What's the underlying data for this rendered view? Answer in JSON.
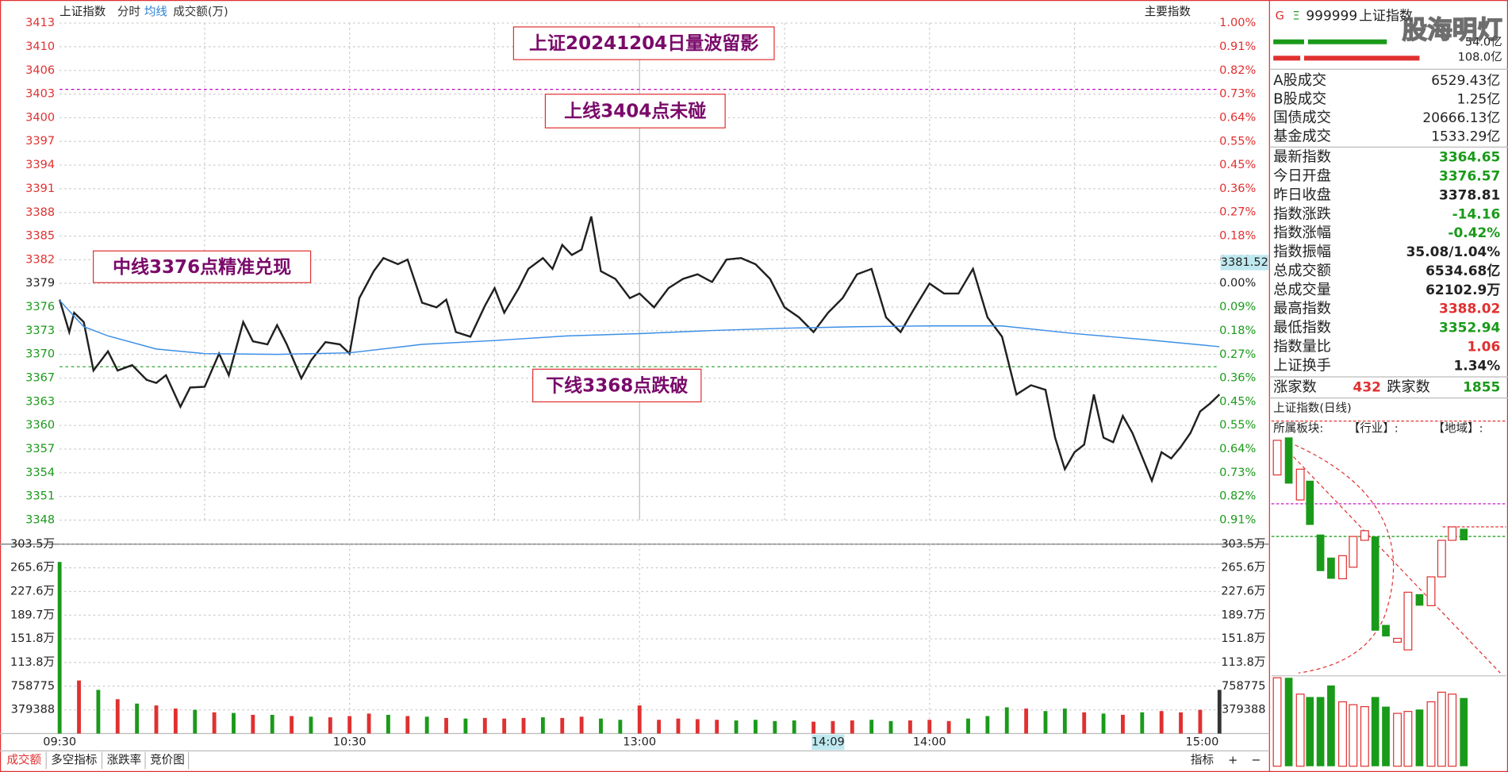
{
  "header": {
    "index_name": "上证指数",
    "tabs": [
      "分时",
      "均线",
      "成交额(万)"
    ],
    "main_index": "主要指数"
  },
  "watermark": "股海明灯",
  "chart_data": [
    {
      "type": "line",
      "title": "上证20241204日量波留影",
      "annotations": [
        "上线3404点未碰",
        "中线3376点精准兑现",
        "下线3368点跌破"
      ],
      "base": 3378.81,
      "xlim": [
        0,
        240
      ],
      "ylim": [
        3348.09,
        3412.6
      ],
      "yticks": [
        {
          "value": 3412.6,
          "label": "3413"
        },
        {
          "value": 3409.53,
          "label": "3410"
        },
        {
          "value": 3406.45,
          "label": "3406"
        },
        {
          "value": 3403.38,
          "label": "3403"
        },
        {
          "value": 3400.31,
          "label": "3400"
        },
        {
          "value": 3397.24,
          "label": "3397"
        },
        {
          "value": 3394.17,
          "label": "3394"
        },
        {
          "value": 3391.1,
          "label": "3391"
        },
        {
          "value": 3388.02,
          "label": "3388"
        },
        {
          "value": 3384.95,
          "label": "3385"
        },
        {
          "value": 3381.88,
          "label": "3382"
        },
        {
          "value": 3378.81,
          "label": "3379"
        },
        {
          "value": 3375.74,
          "label": "3376"
        },
        {
          "value": 3372.67,
          "label": "3373"
        },
        {
          "value": 3369.6,
          "label": "3370"
        },
        {
          "value": 3366.52,
          "label": "3367"
        },
        {
          "value": 3363.45,
          "label": "3363"
        },
        {
          "value": 3360.38,
          "label": "3360"
        },
        {
          "value": 3357.31,
          "label": "3357"
        },
        {
          "value": 3354.24,
          "label": "3354"
        },
        {
          "value": 3351.17,
          "label": "3351"
        },
        {
          "value": 3348.09,
          "label": "3348"
        }
      ],
      "y2lim": [
        -0.909,
        1.0
      ],
      "y2ticks": [
        {
          "value": 1.0,
          "label": "1.00%"
        },
        {
          "value": 0.909,
          "label": "0.91%"
        },
        {
          "value": 0.818,
          "label": "0.82%"
        },
        {
          "value": 0.727,
          "label": "0.73%"
        },
        {
          "value": 0.636,
          "label": "0.64%"
        },
        {
          "value": 0.545,
          "label": "0.55%"
        },
        {
          "value": 0.455,
          "label": "0.45%"
        },
        {
          "value": 0.364,
          "label": "0.36%"
        },
        {
          "value": 0.273,
          "label": "0.27%"
        },
        {
          "value": 0.182,
          "label": "0.18%"
        },
        {
          "value": 0.091,
          "label": "0.09%"
        },
        {
          "value": 0,
          "label": "0.00%"
        },
        {
          "value": -0.091,
          "label": "0.09%"
        },
        {
          "value": -0.182,
          "label": "0.18%"
        },
        {
          "value": -0.273,
          "label": "0.27%"
        },
        {
          "value": -0.364,
          "label": "0.36%"
        },
        {
          "value": -0.455,
          "label": "0.45%"
        },
        {
          "value": -0.545,
          "label": "0.55%"
        },
        {
          "value": -0.636,
          "label": "0.64%"
        },
        {
          "value": -0.727,
          "label": "0.73%"
        },
        {
          "value": -0.818,
          "label": "0.82%"
        },
        {
          "value": -0.909,
          "label": "0.91%"
        }
      ],
      "up_color": "#e03030",
      "down_color": "#1a9a1a",
      "ref_lines": [
        {
          "value": 3404,
          "color": "#c000c0"
        },
        {
          "value": 3368,
          "color": "#1a9a1a"
        }
      ],
      "cursor": {
        "value": 3381.52
      },
      "series": [
        {
          "color": "#202020",
          "x": [
            0,
            2,
            3,
            5,
            7,
            10,
            12,
            15,
            18,
            20,
            22,
            25,
            27,
            30,
            33,
            35,
            38,
            40,
            43,
            45,
            47,
            50,
            52,
            55,
            58,
            60,
            62,
            65,
            67,
            70,
            72,
            75,
            78,
            80,
            82,
            85,
            88,
            90,
            92,
            95,
            97,
            100,
            102,
            104,
            106,
            108,
            110,
            112,
            115,
            118,
            120,
            123,
            126,
            129,
            132,
            135,
            138,
            141,
            144,
            147,
            150,
            153,
            156,
            159,
            162,
            165,
            168,
            171,
            174,
            177,
            180,
            183,
            186,
            189,
            192,
            195,
            198,
            201,
            204,
            206,
            208,
            210,
            212,
            214,
            216,
            218,
            220,
            222,
            224,
            226,
            228,
            230,
            232,
            234,
            236,
            238,
            240
          ],
          "values": [
            3376.7,
            3372.5,
            3375.0,
            3373.8,
            3367.5,
            3370.0,
            3367.5,
            3368.2,
            3366.3,
            3365.9,
            3366.9,
            3362.8,
            3365.3,
            3365.4,
            3369.7,
            3366.9,
            3373.8,
            3371.3,
            3370.9,
            3373.4,
            3370.9,
            3366.5,
            3368.8,
            3371.2,
            3370.9,
            3369.7,
            3376.9,
            3380.4,
            3382.1,
            3381.3,
            3381.9,
            3376.3,
            3375.7,
            3376.7,
            3372.5,
            3371.9,
            3375.9,
            3378.2,
            3375.0,
            3378.2,
            3380.7,
            3382.1,
            3380.7,
            3383.8,
            3382.5,
            3383.2,
            3387.5,
            3380.4,
            3379.4,
            3376.9,
            3377.5,
            3375.7,
            3378.2,
            3379.4,
            3380.0,
            3379.0,
            3381.9,
            3382.1,
            3381.3,
            3379.4,
            3375.7,
            3374.4,
            3372.5,
            3375.0,
            3376.9,
            3380.0,
            3380.7,
            3374.4,
            3372.5,
            3375.7,
            3378.8,
            3377.5,
            3377.5,
            3380.7,
            3374.4,
            3371.9,
            3364.4,
            3365.6,
            3365.0,
            3358.8,
            3354.7,
            3356.9,
            3357.9,
            3364.4,
            3358.8,
            3358.2,
            3361.6,
            3359.4,
            3356.3,
            3353.2,
            3356.9,
            3356.1,
            3357.6,
            3359.4,
            3362.2,
            3363.2,
            3364.4
          ]
        },
        {
          "color": "#3a8ee6",
          "x": [
            0,
            5,
            10,
            20,
            30,
            45,
            60,
            75,
            90,
            105,
            120,
            135,
            150,
            165,
            180,
            195,
            210,
            225,
            240
          ],
          "values": [
            3376.6,
            3373.2,
            3372.0,
            3370.3,
            3369.7,
            3369.6,
            3369.8,
            3370.9,
            3371.4,
            3372.0,
            3372.3,
            3372.7,
            3373.0,
            3373.2,
            3373.3,
            3373.3,
            3372.3,
            3371.5,
            3370.6
          ]
        }
      ]
    },
    {
      "type": "bar",
      "xlim": [
        0,
        240
      ],
      "xticks": [
        {
          "value": 0,
          "label": "09:30"
        },
        {
          "value": 60,
          "label": "10:30"
        },
        {
          "value": 120,
          "label": "13:00"
        },
        {
          "value": 180,
          "label": "14:00"
        },
        {
          "value": 240,
          "label": "15:00"
        }
      ],
      "cursor_time": {
        "value": 159,
        "label": "14:09"
      },
      "ylim": [
        0,
        303.5
      ],
      "yticks": [
        {
          "value": 303.5,
          "label": "303.5万"
        },
        {
          "value": 265.6,
          "label": "265.6万"
        },
        {
          "value": 227.6,
          "label": "227.6万"
        },
        {
          "value": 189.7,
          "label": "189.7万"
        },
        {
          "value": 151.8,
          "label": "151.8万"
        },
        {
          "value": 113.8,
          "label": "113.8万"
        },
        {
          "value": 75.8775,
          "label": "758775"
        },
        {
          "value": 37.9388,
          "label": "379388"
        }
      ],
      "x": [
        0,
        4,
        8,
        12,
        16,
        20,
        24,
        28,
        32,
        36,
        40,
        44,
        48,
        52,
        56,
        60,
        64,
        68,
        72,
        76,
        80,
        84,
        88,
        92,
        96,
        100,
        104,
        108,
        112,
        116,
        120,
        124,
        128,
        132,
        136,
        140,
        144,
        148,
        152,
        156,
        160,
        164,
        168,
        172,
        176,
        180,
        184,
        188,
        192,
        196,
        200,
        204,
        208,
        212,
        216,
        220,
        224,
        228,
        232,
        236,
        240
      ],
      "values": [
        275,
        85,
        70,
        55,
        48,
        45,
        40,
        38,
        34,
        33,
        30,
        30,
        28,
        27,
        26,
        28,
        32,
        30,
        28,
        27,
        25,
        24,
        25,
        24,
        25,
        26,
        25,
        27,
        24,
        22,
        45,
        22,
        24,
        23,
        22,
        21,
        22,
        20,
        21,
        19,
        20,
        21,
        22,
        20,
        21,
        22,
        20,
        24,
        28,
        42,
        40,
        36,
        40,
        34,
        32,
        30,
        34,
        36,
        34,
        38,
        70
      ],
      "colors": [
        "#1a9a1a",
        "#e03030",
        "#1a9a1a",
        "#e03030",
        "#1a9a1a",
        "#e03030",
        "#e03030",
        "#1a9a1a",
        "#e03030",
        "#1a9a1a",
        "#e03030",
        "#1a9a1a",
        "#e03030",
        "#1a9a1a",
        "#e03030",
        "#e03030",
        "#e03030",
        "#1a9a1a",
        "#e03030",
        "#1a9a1a",
        "#e03030",
        "#1a9a1a",
        "#e03030",
        "#e03030",
        "#e03030",
        "#1a9a1a",
        "#e03030",
        "#e03030",
        "#1a9a1a",
        "#1a9a1a",
        "#e03030",
        "#e03030",
        "#e03030",
        "#e03030",
        "#e03030",
        "#1a9a1a",
        "#1a9a1a",
        "#1a9a1a",
        "#1a9a1a",
        "#e03030",
        "#e03030",
        "#e03030",
        "#1a9a1a",
        "#1a9a1a",
        "#e03030",
        "#e03030",
        "#e03030",
        "#1a9a1a",
        "#1a9a1a",
        "#1a9a1a",
        "#e03030",
        "#1a9a1a",
        "#1a9a1a",
        "#e03030",
        "#1a9a1a",
        "#e03030",
        "#1a9a1a",
        "#e03030",
        "#e03030",
        "#e03030",
        "#333333"
      ]
    }
  ],
  "side_panel": {
    "code_prefix": "G",
    "code_mark": "Ξ",
    "code": "999999",
    "name": "上证指数",
    "bar_labels": [
      "54.0亿",
      "108.0亿"
    ],
    "turnover_rows": [
      {
        "label": "A股成交",
        "value": "6529.43亿"
      },
      {
        "label": "B股成交",
        "value": "1.25亿"
      },
      {
        "label": "国债成交",
        "value": "20666.13亿"
      },
      {
        "label": "基金成交",
        "value": "1533.29亿"
      }
    ],
    "quote_rows": [
      {
        "label": "最新指数",
        "value": "3364.65",
        "color": "#1a9a1a"
      },
      {
        "label": "今日开盘",
        "value": "3376.57",
        "color": "#1a9a1a"
      },
      {
        "label": "昨日收盘",
        "value": "3378.81",
        "color": "#222222"
      },
      {
        "label": "指数涨跌",
        "value": "-14.16",
        "color": "#1a9a1a"
      },
      {
        "label": "指数涨幅",
        "value": "-0.42%",
        "color": "#1a9a1a"
      },
      {
        "label": "指数振幅",
        "value": "35.08/1.04%",
        "color": "#222222"
      },
      {
        "label": "总成交额",
        "value": "6534.68亿",
        "color": "#222222"
      },
      {
        "label": "总成交量",
        "value": "62102.9万",
        "color": "#222222"
      },
      {
        "label": "最高指数",
        "value": "3388.02",
        "color": "#e03030"
      },
      {
        "label": "最低指数",
        "value": "3352.94",
        "color": "#1a9a1a"
      },
      {
        "label": "指数量比",
        "value": "1.06",
        "color": "#e03030"
      },
      {
        "label": "上证换手",
        "value": "1.34%",
        "color": "#222222"
      }
    ],
    "breadth": {
      "up_label": "涨家数",
      "up": "432",
      "down_label": "跌家数",
      "down": "1855"
    },
    "daily_title": "上证指数(日线)",
    "sector_label": "所属板块:",
    "industry": "【行业】:",
    "region": "【地域】:"
  },
  "bottom_tabs": [
    "成交额",
    "多空指标",
    "涨跌率",
    "竞价图"
  ],
  "right_buttons": [
    "指标",
    "+",
    "−"
  ]
}
